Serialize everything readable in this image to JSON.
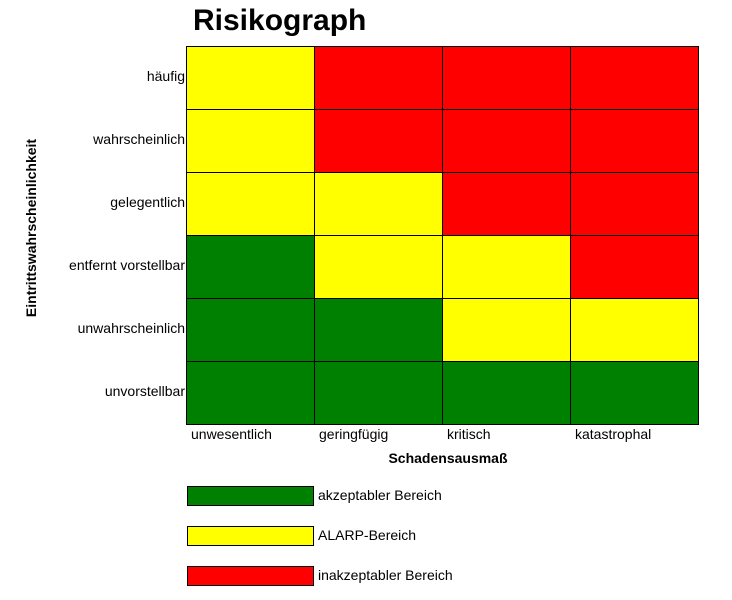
{
  "chart_data": {
    "type": "heatmap",
    "title": "Risikograph",
    "xlabel": "Schadensausmaß",
    "ylabel": "Eintrittswahrscheinlichkeit",
    "x_categories": [
      "unwesentlich",
      "geringfügig",
      "kritisch",
      "katastrophal"
    ],
    "y_categories": [
      "häufig",
      "wahrscheinlich",
      "gelegentlich",
      "entfernt vorstellbar",
      "unwahrscheinlich",
      "unvorstellbar"
    ],
    "legend": [
      {
        "key": "green",
        "label": "akzeptabler Bereich",
        "color": "#008000"
      },
      {
        "key": "yellow",
        "label": "ALARP-Bereich",
        "color": "#ffff00"
      },
      {
        "key": "red",
        "label": "inakzeptabler Bereich",
        "color": "#ff0000"
      }
    ],
    "matrix": [
      [
        "yellow",
        "red",
        "red",
        "red"
      ],
      [
        "yellow",
        "red",
        "red",
        "red"
      ],
      [
        "yellow",
        "yellow",
        "red",
        "red"
      ],
      [
        "green",
        "yellow",
        "yellow",
        "red"
      ],
      [
        "green",
        "green",
        "yellow",
        "yellow"
      ],
      [
        "green",
        "green",
        "green",
        "green"
      ]
    ]
  }
}
